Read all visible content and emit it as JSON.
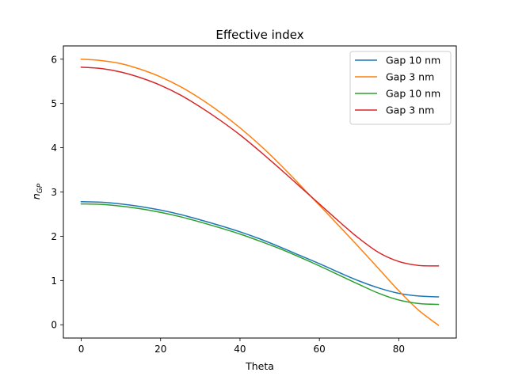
{
  "chart_data": {
    "type": "line",
    "title": "Effective index",
    "xlabel": "Theta",
    "ylabel": "n",
    "ylabel_sub": "GP",
    "xlim": [
      -4.5,
      94.5
    ],
    "ylim": [
      -0.3,
      6.3
    ],
    "xticks": [
      0,
      20,
      40,
      60,
      80
    ],
    "yticks": [
      0,
      1,
      2,
      3,
      4,
      5,
      6
    ],
    "grid": false,
    "legend": "top-right",
    "x": [
      0,
      5,
      10,
      15,
      20,
      25,
      30,
      35,
      40,
      45,
      50,
      55,
      60,
      65,
      70,
      75,
      80,
      85,
      90
    ],
    "series": [
      {
        "name": "Gap 10 nm",
        "color": "#1f77b4",
        "values": [
          2.78,
          2.77,
          2.73,
          2.67,
          2.59,
          2.49,
          2.37,
          2.24,
          2.1,
          1.94,
          1.76,
          1.57,
          1.38,
          1.18,
          0.99,
          0.83,
          0.71,
          0.65,
          0.63
        ]
      },
      {
        "name": "Gap 3 nm",
        "color": "#ff7f0e",
        "values": [
          6.0,
          5.97,
          5.9,
          5.77,
          5.6,
          5.38,
          5.11,
          4.8,
          4.45,
          4.06,
          3.63,
          3.17,
          2.7,
          2.23,
          1.75,
          1.26,
          0.77,
          0.33,
          -0.01
        ]
      },
      {
        "name": "Gap 10 nm",
        "color": "#2ca02c",
        "values": [
          2.73,
          2.72,
          2.68,
          2.62,
          2.54,
          2.44,
          2.32,
          2.19,
          2.05,
          1.89,
          1.72,
          1.53,
          1.33,
          1.12,
          0.91,
          0.71,
          0.56,
          0.48,
          0.46
        ]
      },
      {
        "name": "Gap 3 nm",
        "color": "#d62728",
        "values": [
          5.82,
          5.79,
          5.71,
          5.58,
          5.41,
          5.19,
          4.92,
          4.62,
          4.29,
          3.92,
          3.53,
          3.13,
          2.73,
          2.33,
          1.95,
          1.63,
          1.43,
          1.34,
          1.33
        ]
      }
    ]
  }
}
